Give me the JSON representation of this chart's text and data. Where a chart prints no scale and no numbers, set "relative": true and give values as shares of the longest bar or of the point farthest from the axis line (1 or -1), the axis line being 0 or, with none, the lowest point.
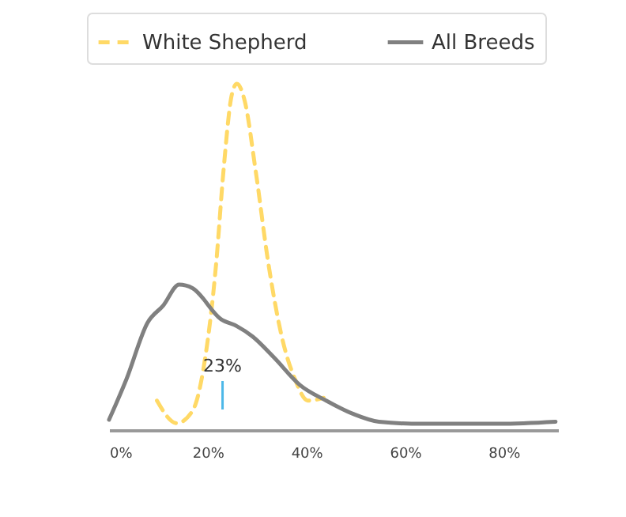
{
  "chart_data": {
    "type": "line",
    "relative": true,
    "legend": "top",
    "grid": false,
    "marker": "none",
    "xlim": [
      0,
      91
    ],
    "xticks": [
      {
        "value": 0,
        "label": "0%"
      },
      {
        "value": 20,
        "label": "20%"
      },
      {
        "value": 40,
        "label": "40%"
      },
      {
        "value": 60,
        "label": "60%"
      },
      {
        "value": 80,
        "label": "80%"
      }
    ],
    "annotations": [
      {
        "text": "23%",
        "x": 23
      }
    ],
    "series": [
      {
        "name": "White Shepherd",
        "color": "#ffd966",
        "line_style": "dashed",
        "x": [
          9.7,
          13.7,
          16.9,
          19.5,
          21.7,
          23.2,
          24.9,
          25.9,
          27.5,
          29.7,
          32.3,
          35,
          37.7,
          40.3,
          43.5
        ],
        "values": [
          0.085,
          0.02,
          0.055,
          0.21,
          0.48,
          0.75,
          0.97,
          1,
          0.95,
          0.75,
          0.48,
          0.27,
          0.146,
          0.085,
          0.093
        ]
      },
      {
        "name": "All Breeds",
        "color": "#808080",
        "line_style": "solid",
        "x": [
          0,
          3.5,
          7.8,
          11,
          14.2,
          16.9,
          22.7,
          25.9,
          29.1,
          33.4,
          38.7,
          44,
          49.4,
          54.7,
          63.3,
          79.3,
          90.5
        ],
        "values": [
          0.03,
          0.146,
          0.31,
          0.36,
          0.42,
          0.41,
          0.32,
          0.3,
          0.27,
          0.21,
          0.13,
          0.085,
          0.047,
          0.024,
          0.018,
          0.018,
          0.024
        ]
      }
    ]
  }
}
